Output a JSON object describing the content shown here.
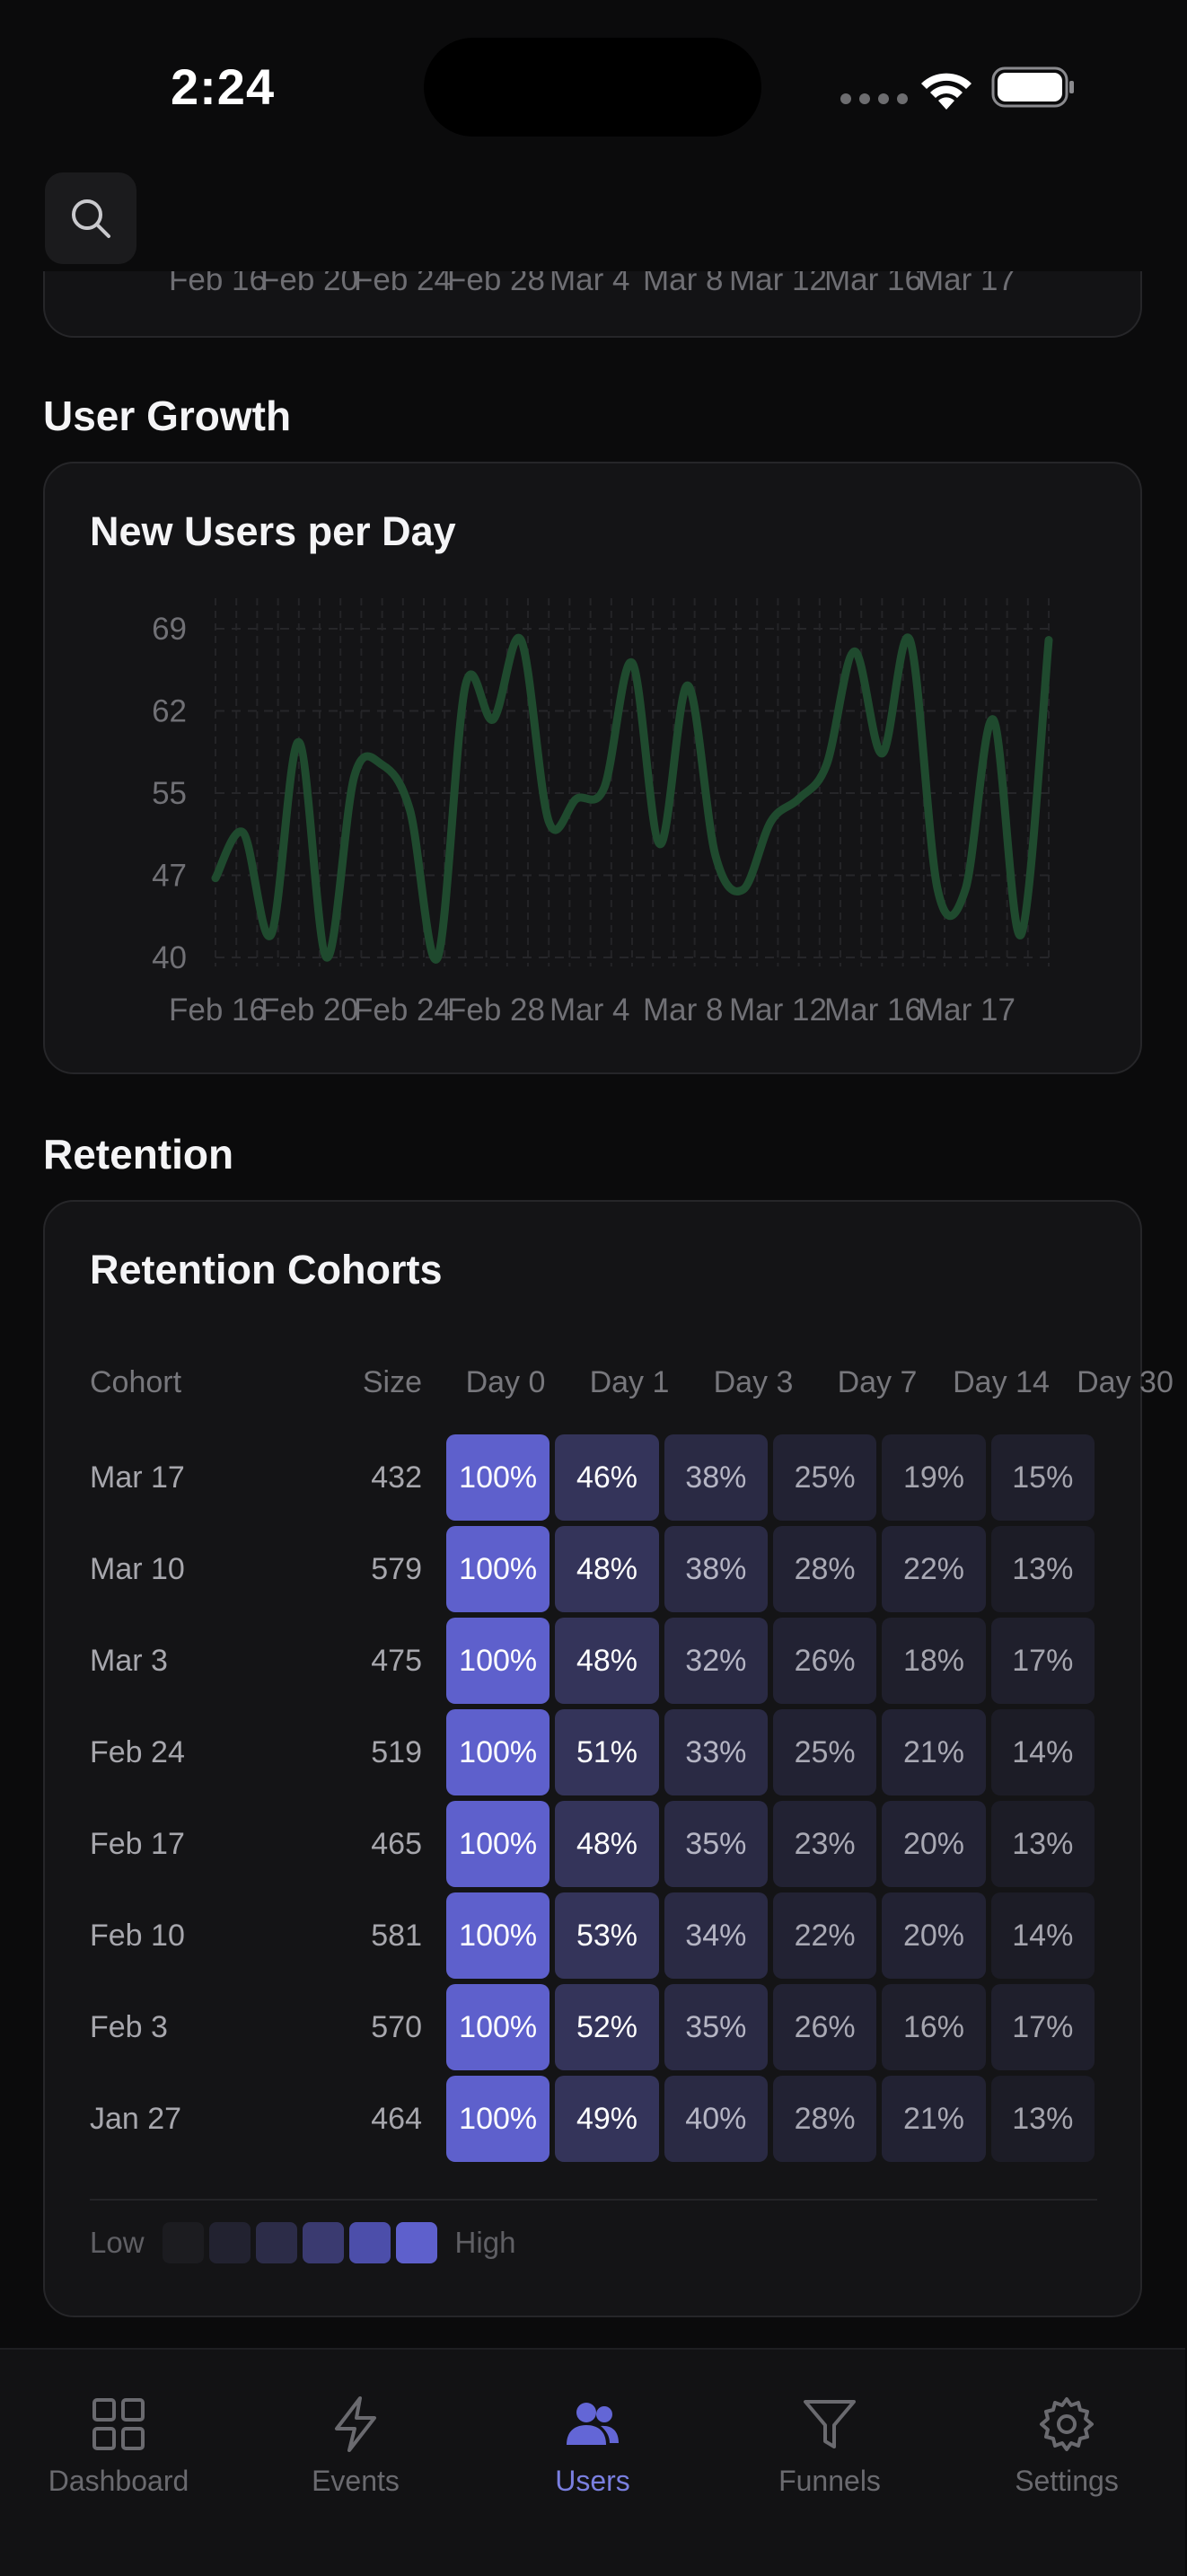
{
  "status_bar": {
    "time": "2:24"
  },
  "prev_chart": {
    "x_ticks": [
      "Feb 16",
      "Feb 20",
      "Feb 24",
      "Feb 28",
      "Mar 4",
      "Mar 8",
      "Mar 12",
      "Mar 16",
      "Mar 17"
    ]
  },
  "user_growth": {
    "section_title": "User Growth",
    "card_title": "New Users per Day"
  },
  "chart_data": {
    "type": "line",
    "title": "New Users per Day",
    "x_ticks": [
      "Feb 16",
      "Feb 20",
      "Feb 24",
      "Feb 28",
      "Mar 4",
      "Mar 8",
      "Mar 12",
      "Mar 16",
      "Mar 17"
    ],
    "y_ticks": [
      "69",
      "62",
      "55",
      "47",
      "40"
    ],
    "ylim": [
      40,
      69
    ],
    "series": [
      {
        "name": "New Users",
        "color": "#1f4a2e",
        "values": [
          47,
          51,
          42,
          59,
          40,
          56,
          57,
          53,
          40,
          64,
          61,
          68,
          52,
          54,
          55,
          66,
          50,
          64,
          49,
          46,
          52,
          54,
          57,
          67,
          58,
          68,
          46,
          46,
          61,
          42,
          68
        ]
      }
    ]
  },
  "retention": {
    "section_title": "Retention",
    "card_title": "Retention Cohorts",
    "headers": [
      "Cohort",
      "Size",
      "Day 0",
      "Day 1",
      "Day 3",
      "Day 7",
      "Day 14",
      "Day 30"
    ],
    "rows": [
      {
        "cohort": "Mar 17",
        "size": "432",
        "values": [
          "100%",
          "46%",
          "38%",
          "25%",
          "19%",
          "15%"
        ]
      },
      {
        "cohort": "Mar 10",
        "size": "579",
        "values": [
          "100%",
          "48%",
          "38%",
          "28%",
          "22%",
          "13%"
        ]
      },
      {
        "cohort": "Mar 3",
        "size": "475",
        "values": [
          "100%",
          "48%",
          "32%",
          "26%",
          "18%",
          "17%"
        ]
      },
      {
        "cohort": "Feb 24",
        "size": "519",
        "values": [
          "100%",
          "51%",
          "33%",
          "25%",
          "21%",
          "14%"
        ]
      },
      {
        "cohort": "Feb 17",
        "size": "465",
        "values": [
          "100%",
          "48%",
          "35%",
          "23%",
          "20%",
          "13%"
        ]
      },
      {
        "cohort": "Feb 10",
        "size": "581",
        "values": [
          "100%",
          "53%",
          "34%",
          "22%",
          "20%",
          "14%"
        ]
      },
      {
        "cohort": "Feb 3",
        "size": "570",
        "values": [
          "100%",
          "52%",
          "35%",
          "26%",
          "16%",
          "17%"
        ]
      },
      {
        "cohort": "Jan 27",
        "size": "464",
        "values": [
          "100%",
          "49%",
          "40%",
          "28%",
          "21%",
          "13%"
        ]
      }
    ],
    "legend": {
      "low": "Low",
      "high": "High",
      "swatches": [
        "#1c1c20",
        "#222230",
        "#2c2c48",
        "#3a3a70",
        "#4c4eaa",
        "#5e60cc"
      ]
    }
  },
  "tabs": [
    {
      "label": "Dashboard",
      "icon": "grid-icon",
      "active": false
    },
    {
      "label": "Events",
      "icon": "bolt-icon",
      "active": false
    },
    {
      "label": "Users",
      "icon": "users-icon",
      "active": true
    },
    {
      "label": "Funnels",
      "icon": "filter-icon",
      "active": false
    },
    {
      "label": "Settings",
      "icon": "gear-icon",
      "active": false
    }
  ],
  "colors": {
    "accent": "#6366d6",
    "background": "#0b0b0c",
    "card": "#141416"
  }
}
